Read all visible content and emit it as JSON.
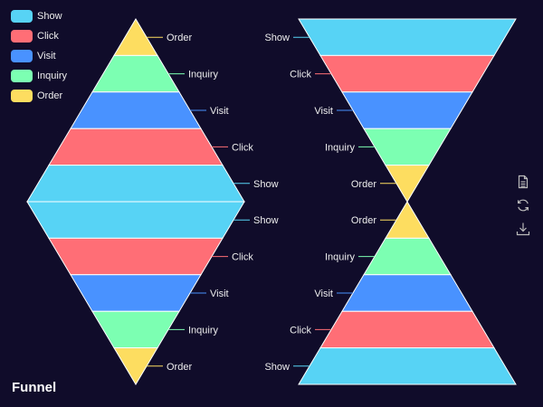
{
  "chart_data": {
    "type": "funnel",
    "title": "Funnel",
    "legend": {
      "placement": "top-left",
      "entries": [
        {
          "name": "Show",
          "color": "#57d3f5"
        },
        {
          "name": "Click",
          "color": "#ff6e76"
        },
        {
          "name": "Visit",
          "color": "#4992ff"
        },
        {
          "name": "Inquiry",
          "color": "#7cffb2"
        },
        {
          "name": "Order",
          "color": "#fddd60"
        }
      ]
    },
    "categories": [
      "Show",
      "Click",
      "Visit",
      "Inquiry",
      "Order"
    ],
    "values": [
      100,
      80,
      60,
      40,
      20
    ],
    "panels": [
      {
        "position": "left",
        "funnels": [
          {
            "sort": "ascending",
            "label_position": "right",
            "categories": [
              "Order",
              "Inquiry",
              "Visit",
              "Click",
              "Show"
            ],
            "values": [
              20,
              40,
              60,
              80,
              100
            ]
          },
          {
            "sort": "descending",
            "label_position": "right",
            "categories": [
              "Show",
              "Click",
              "Visit",
              "Inquiry",
              "Order"
            ],
            "values": [
              100,
              80,
              60,
              40,
              20
            ]
          }
        ]
      },
      {
        "position": "right",
        "funnels": [
          {
            "sort": "descending",
            "label_position": "left",
            "categories": [
              "Show",
              "Click",
              "Visit",
              "Inquiry",
              "Order"
            ],
            "values": [
              100,
              80,
              60,
              40,
              20
            ]
          },
          {
            "sort": "ascending",
            "label_position": "left",
            "categories": [
              "Order",
              "Inquiry",
              "Visit",
              "Click",
              "Show"
            ],
            "values": [
              20,
              40,
              60,
              80,
              100
            ]
          }
        ]
      }
    ]
  },
  "toolbox": [
    {
      "name": "data-view",
      "icon": "document-icon"
    },
    {
      "name": "restore",
      "icon": "refresh-icon"
    },
    {
      "name": "save-image",
      "icon": "download-icon"
    }
  ]
}
